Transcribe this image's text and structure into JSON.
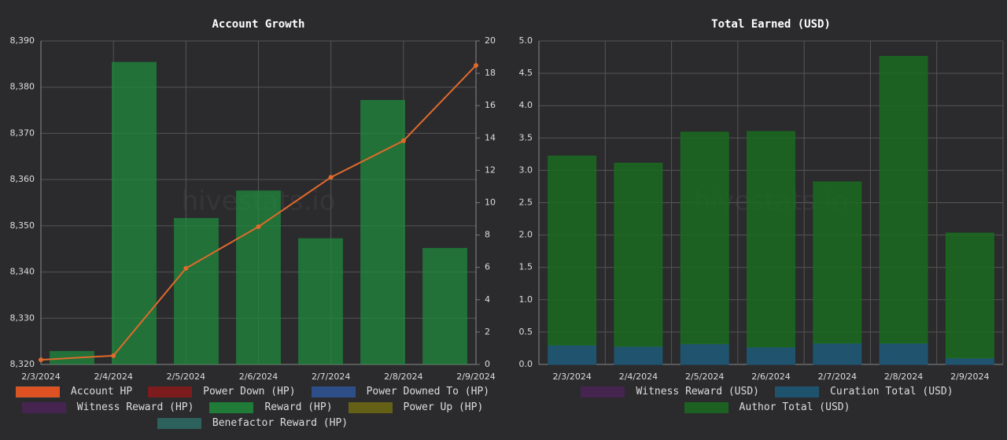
{
  "charts": [
    {
      "chart_data": {
        "type": "combo",
        "title": "Account Growth",
        "watermark": "hivestats.io",
        "categories": [
          "2/3/2024",
          "2/4/2024",
          "2/5/2024",
          "2/6/2024",
          "2/7/2024",
          "2/8/2024",
          "2/9/2024"
        ],
        "ylim": [
          8320,
          8390
        ],
        "yticks": [
          {
            "value": 8320,
            "label": "8,320"
          },
          {
            "value": 8330,
            "label": "8,330"
          },
          {
            "value": 8340,
            "label": "8,340"
          },
          {
            "value": 8350,
            "label": "8,350"
          },
          {
            "value": 8360,
            "label": "8,360"
          },
          {
            "value": 8370,
            "label": "8,370"
          },
          {
            "value": 8380,
            "label": "8,380"
          },
          {
            "value": 8390,
            "label": "8,390"
          }
        ],
        "y2lim": [
          0,
          20
        ],
        "y2ticks": [
          0,
          2,
          4,
          6,
          8,
          10,
          12,
          14,
          16,
          18,
          20
        ],
        "grid": true,
        "series": [
          {
            "name": "Account HP",
            "type": "line",
            "color": "#ff5722",
            "line_color": "#e06a2c",
            "values": [
              8321.0,
              8321.9,
              8340.8,
              8349.8,
              8360.5,
              8368.4,
              8384.7
            ]
          },
          {
            "name": "Power Down (HP)",
            "type": "bar",
            "axis": "y2",
            "color": "#8b1a1a",
            "values": [
              null,
              null,
              null,
              null,
              null,
              null,
              null
            ]
          },
          {
            "name": "Power Downed To (HP)",
            "type": "bar",
            "axis": "y2",
            "color": "#2f5597",
            "values": [
              null,
              null,
              null,
              null,
              null,
              null,
              null
            ]
          },
          {
            "name": "Witness Reward (HP)",
            "type": "bar",
            "axis": "y2",
            "color": "#4a2456",
            "values": [
              null,
              null,
              null,
              null,
              null,
              null,
              null
            ]
          },
          {
            "name": "Reward (HP)",
            "type": "bar",
            "axis": "y2",
            "color": "#1f8a3c",
            "values": [
              0.83,
              18.7,
              9.05,
              10.75,
              7.8,
              16.35,
              7.2
            ]
          },
          {
            "name": "Power Up (HP)",
            "type": "bar",
            "axis": "y2",
            "color": "#6e6a12",
            "values": [
              null,
              null,
              null,
              null,
              null,
              null,
              null
            ]
          },
          {
            "name": "Benefactor Reward (HP)",
            "type": "bar",
            "axis": "y2",
            "color": "#2e6b63",
            "values": [
              null,
              null,
              null,
              null,
              null,
              null,
              null
            ]
          }
        ]
      }
    },
    {
      "chart_data": {
        "type": "stacked-bar",
        "title": "Total Earned (USD)",
        "watermark": "hivestats.io",
        "categories": [
          "2/3/2024",
          "2/4/2024",
          "2/5/2024",
          "2/6/2024",
          "2/7/2024",
          "2/8/2024",
          "2/9/2024"
        ],
        "ylim": [
          0,
          5
        ],
        "yticks": [
          {
            "value": 0,
            "label": "0.0"
          },
          {
            "value": 0.5,
            "label": "0.5"
          },
          {
            "value": 1,
            "label": "1.0"
          },
          {
            "value": 1.5,
            "label": "1.5"
          },
          {
            "value": 2,
            "label": "2.0"
          },
          {
            "value": 2.5,
            "label": "2.5"
          },
          {
            "value": 3,
            "label": "3.0"
          },
          {
            "value": 3.5,
            "label": "3.5"
          },
          {
            "value": 4,
            "label": "4.0"
          },
          {
            "value": 4.5,
            "label": "4.5"
          },
          {
            "value": 5,
            "label": "5.0"
          }
        ],
        "grid": true,
        "series": [
          {
            "name": "Witness Reward (USD)",
            "color": "#4a2456",
            "values": [
              0,
              0,
              0,
              0,
              0,
              0,
              0
            ]
          },
          {
            "name": "Curation Total (USD)",
            "color": "#1e5a78",
            "values": [
              0.3,
              0.28,
              0.32,
              0.27,
              0.33,
              0.33,
              0.1
            ]
          },
          {
            "name": "Author Total (USD)",
            "color": "#1a6b1f",
            "values": [
              2.92,
              2.83,
              3.27,
              3.33,
              2.49,
              4.43,
              1.93
            ]
          }
        ]
      }
    }
  ]
}
